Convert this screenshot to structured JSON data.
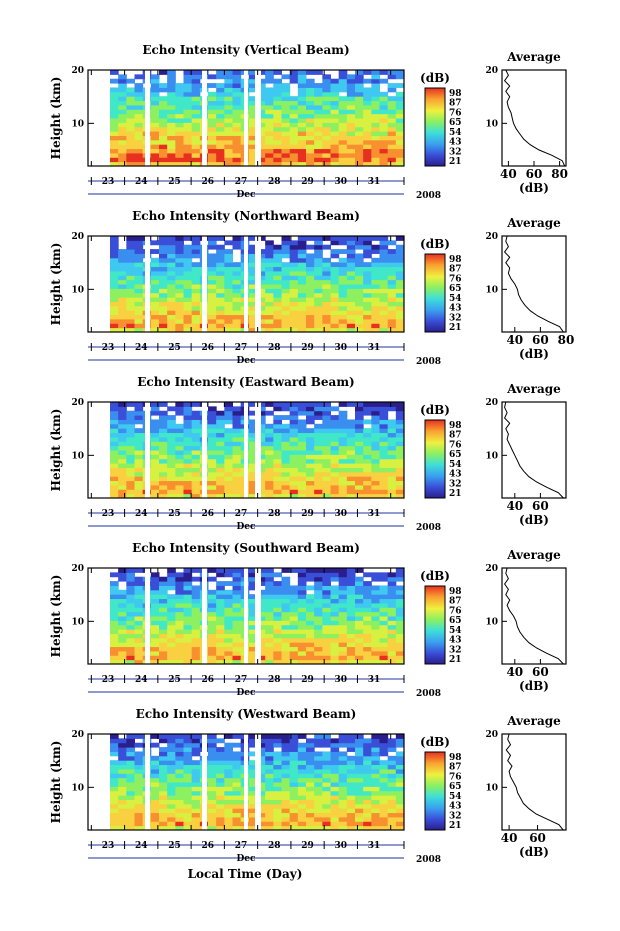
{
  "figure": {
    "xlabel": "Local Time (Day)"
  },
  "chart_data": [
    {
      "type": "heatmap",
      "title": "Echo Intensity (Vertical Beam)",
      "ylabel": "Height (km)",
      "xlabel": "Dec",
      "year_label": "2008",
      "x_ticks": [
        "23",
        "24",
        "25",
        "26",
        "27",
        "28",
        "29",
        "30",
        "31"
      ],
      "y_ticks": [
        "10",
        "20"
      ],
      "ylim": [
        2,
        20
      ],
      "colorbar": {
        "unit": "(dB)",
        "ticks": [
          "98",
          "87",
          "76",
          "65",
          "54",
          "43",
          "32",
          "21"
        ]
      },
      "average": {
        "title": "Average",
        "xlabel": "(dB)",
        "x_ticks": [
          "40",
          "60",
          "80"
        ],
        "xlim": [
          35,
          85
        ],
        "profile": [
          [
            84,
            2
          ],
          [
            82,
            3
          ],
          [
            74,
            4
          ],
          [
            64,
            5
          ],
          [
            57,
            6
          ],
          [
            52,
            7
          ],
          [
            49,
            8
          ],
          [
            46,
            9
          ],
          [
            44,
            10
          ],
          [
            43,
            11
          ],
          [
            42,
            12
          ],
          [
            40,
            13
          ],
          [
            39,
            14
          ],
          [
            41,
            15
          ],
          [
            38,
            16
          ],
          [
            41,
            17
          ],
          [
            37,
            18
          ],
          [
            40,
            19
          ],
          [
            38,
            20
          ]
        ]
      }
    },
    {
      "type": "heatmap",
      "title": "Echo Intensity (Northward Beam)",
      "ylabel": "Height (km)",
      "xlabel": "Dec",
      "year_label": "2008",
      "x_ticks": [
        "23",
        "24",
        "25",
        "26",
        "27",
        "28",
        "29",
        "30",
        "31"
      ],
      "y_ticks": [
        "10",
        "20"
      ],
      "ylim": [
        2,
        20
      ],
      "colorbar": {
        "unit": "(dB)",
        "ticks": [
          "98",
          "87",
          "76",
          "65",
          "54",
          "43",
          "32",
          "21"
        ]
      },
      "average": {
        "title": "Average",
        "xlabel": "(dB)",
        "x_ticks": [
          "40",
          "60",
          "80"
        ],
        "xlim": [
          30,
          80
        ],
        "profile": [
          [
            78,
            2
          ],
          [
            75,
            3
          ],
          [
            66,
            4
          ],
          [
            58,
            5
          ],
          [
            52,
            6
          ],
          [
            48,
            7
          ],
          [
            45,
            8
          ],
          [
            43,
            9
          ],
          [
            42,
            10
          ],
          [
            40,
            11
          ],
          [
            37,
            12
          ],
          [
            35,
            13
          ],
          [
            36,
            14
          ],
          [
            33,
            15
          ],
          [
            36,
            16
          ],
          [
            32,
            17
          ],
          [
            35,
            18
          ],
          [
            33,
            19
          ],
          [
            34,
            20
          ]
        ]
      }
    },
    {
      "type": "heatmap",
      "title": "Echo Intensity (Eastward Beam)",
      "ylabel": "Height (km)",
      "xlabel": "Dec",
      "year_label": "2008",
      "x_ticks": [
        "23",
        "24",
        "25",
        "26",
        "27",
        "28",
        "29",
        "30",
        "31"
      ],
      "y_ticks": [
        "10",
        "20"
      ],
      "ylim": [
        2,
        20
      ],
      "colorbar": {
        "unit": "(dB)",
        "ticks": [
          "98",
          "87",
          "76",
          "65",
          "54",
          "43",
          "32",
          "21"
        ]
      },
      "average": {
        "title": "Average",
        "xlabel": "(dB)",
        "x_ticks": [
          "40",
          "60"
        ],
        "xlim": [
          30,
          80
        ],
        "profile": [
          [
            78,
            2
          ],
          [
            74,
            3
          ],
          [
            65,
            4
          ],
          [
            57,
            5
          ],
          [
            51,
            6
          ],
          [
            47,
            7
          ],
          [
            44,
            8
          ],
          [
            42,
            9
          ],
          [
            40,
            10
          ],
          [
            38,
            11
          ],
          [
            36,
            12
          ],
          [
            34,
            13
          ],
          [
            35,
            14
          ],
          [
            33,
            15
          ],
          [
            36,
            16
          ],
          [
            32,
            17
          ],
          [
            34,
            18
          ],
          [
            32,
            19
          ],
          [
            33,
            20
          ]
        ]
      }
    },
    {
      "type": "heatmap",
      "title": "Echo Intensity (Southward Beam)",
      "ylabel": "Height (km)",
      "xlabel": "Dec",
      "year_label": "2008",
      "x_ticks": [
        "23",
        "24",
        "25",
        "26",
        "27",
        "28",
        "29",
        "30",
        "31"
      ],
      "y_ticks": [
        "10",
        "20"
      ],
      "ylim": [
        2,
        20
      ],
      "colorbar": {
        "unit": "(dB)",
        "ticks": [
          "98",
          "87",
          "76",
          "65",
          "54",
          "43",
          "32",
          "21"
        ]
      },
      "average": {
        "title": "Average",
        "xlabel": "(dB)",
        "x_ticks": [
          "40",
          "60"
        ],
        "xlim": [
          30,
          80
        ],
        "profile": [
          [
            78,
            2
          ],
          [
            74,
            3
          ],
          [
            65,
            4
          ],
          [
            57,
            5
          ],
          [
            51,
            6
          ],
          [
            47,
            7
          ],
          [
            44,
            8
          ],
          [
            42,
            9
          ],
          [
            41,
            10
          ],
          [
            39,
            11
          ],
          [
            36,
            12
          ],
          [
            34,
            13
          ],
          [
            36,
            14
          ],
          [
            33,
            15
          ],
          [
            35,
            16
          ],
          [
            32,
            17
          ],
          [
            35,
            18
          ],
          [
            33,
            19
          ],
          [
            34,
            20
          ]
        ]
      }
    },
    {
      "type": "heatmap",
      "title": "Echo Intensity (Westward Beam)",
      "ylabel": "Height (km)",
      "xlabel": "Dec",
      "year_label": "2008",
      "x_ticks": [
        "23",
        "24",
        "25",
        "26",
        "27",
        "28",
        "29",
        "30",
        "31"
      ],
      "y_ticks": [
        "10",
        "20"
      ],
      "ylim": [
        2,
        20
      ],
      "colorbar": {
        "unit": "(dB)",
        "ticks": [
          "98",
          "87",
          "76",
          "65",
          "54",
          "43",
          "32",
          "21"
        ]
      },
      "average": {
        "title": "Average",
        "xlabel": "(dB)",
        "x_ticks": [
          "40",
          "60"
        ],
        "xlim": [
          35,
          80
        ],
        "profile": [
          [
            78,
            2
          ],
          [
            75,
            3
          ],
          [
            67,
            4
          ],
          [
            59,
            5
          ],
          [
            54,
            6
          ],
          [
            50,
            7
          ],
          [
            48,
            8
          ],
          [
            46,
            9
          ],
          [
            45,
            10
          ],
          [
            43,
            11
          ],
          [
            41,
            12
          ],
          [
            40,
            13
          ],
          [
            42,
            14
          ],
          [
            39,
            15
          ],
          [
            41,
            16
          ],
          [
            38,
            17
          ],
          [
            41,
            18
          ],
          [
            39,
            19
          ],
          [
            40,
            20
          ]
        ]
      }
    }
  ]
}
